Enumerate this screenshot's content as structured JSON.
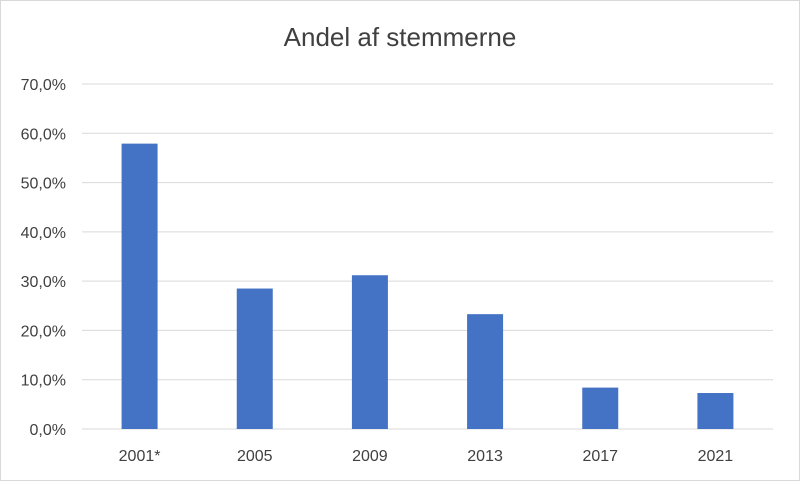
{
  "chart_data": {
    "type": "bar",
    "title": "Andel af stemmerne",
    "xlabel": "",
    "ylabel": "",
    "categories": [
      "2001*",
      "2005",
      "2009",
      "2013",
      "2017",
      "2021"
    ],
    "values": [
      57.9,
      28.5,
      31.2,
      23.3,
      8.4,
      7.3
    ],
    "ylim": [
      0,
      70
    ],
    "y_ticks": [
      0,
      10,
      20,
      30,
      40,
      50,
      60,
      70
    ],
    "y_tick_labels": [
      "0,0%",
      "10,0%",
      "20,0%",
      "30,0%",
      "40,0%",
      "50,0%",
      "60,0%",
      "70,0%"
    ],
    "grid": true,
    "legend": "none",
    "bar_color": "#4472c4",
    "grid_color": "#d9d9d9"
  }
}
